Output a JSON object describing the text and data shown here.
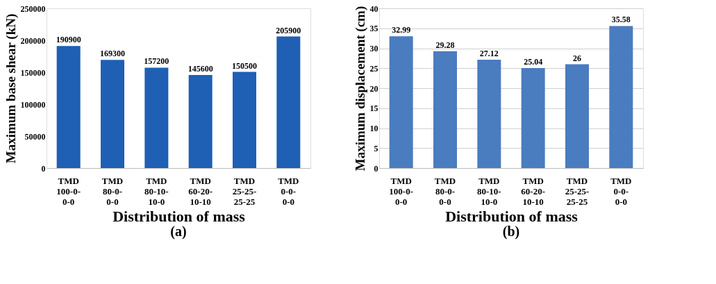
{
  "chart_data": [
    {
      "type": "bar",
      "xlabel": "Distribution of mass",
      "ylabel": "Maximum base shear (kN)",
      "annotations": [
        "(a)"
      ],
      "categories": [
        "TMD\n100-0-\n0-0",
        "TMD\n80-0-\n0-0",
        "TMD\n80-10-\n10-0",
        "TMD\n60-20-\n10-10",
        "TMD\n25-25-\n25-25",
        "TMD\n0-0-\n0-0"
      ],
      "values": [
        190900,
        169300,
        157200,
        145600,
        150500,
        205900
      ],
      "color": "#1f5fb4",
      "ylim": [
        0,
        250000
      ],
      "yticks": [
        0,
        50000,
        100000,
        150000,
        200000,
        250000
      ],
      "grid": false,
      "data_labels": true
    },
    {
      "type": "bar",
      "xlabel": "Distribution of mass",
      "ylabel": "Maximum displacement (cm)",
      "annotations": [
        "(b)"
      ],
      "categories": [
        "TMD\n100-0-\n0-0",
        "TMD\n80-0-\n0-0",
        "TMD\n80-10-\n10-0",
        "TMD\n60-20-\n10-10",
        "TMD\n25-25-\n25-25",
        "TMD\n0-0-\n0-0"
      ],
      "values": [
        32.99,
        29.28,
        27.12,
        25.04,
        26,
        35.58
      ],
      "color": "#4a7cc0",
      "ylim": [
        0,
        40
      ],
      "yticks": [
        0,
        5,
        10,
        15,
        20,
        25,
        30,
        35,
        40
      ],
      "grid": "y",
      "data_labels": true
    }
  ]
}
